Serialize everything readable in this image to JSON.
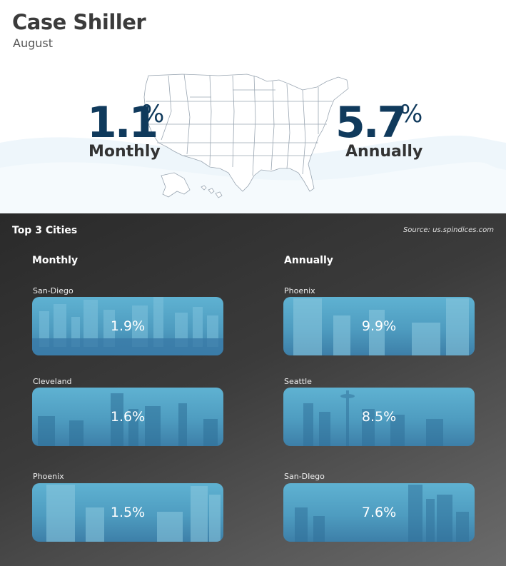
{
  "header": {
    "title": "Case Shiller",
    "subtitle": "August"
  },
  "summary": {
    "monthly": {
      "value": "1.1",
      "unit": "%",
      "label": "Monthly"
    },
    "annually": {
      "value": "5.7",
      "unit": "%",
      "label": "Annually"
    }
  },
  "cities_section": {
    "title": "Top 3 Cities",
    "source": "Source: us.spindices.com",
    "monthly": {
      "heading": "Monthly",
      "items": [
        {
          "city": "San-Diego",
          "value": "1.9%"
        },
        {
          "city": "Cleveland",
          "value": "1.6%"
        },
        {
          "city": "Phoenix",
          "value": "1.5%"
        }
      ]
    },
    "annually": {
      "heading": "Annually",
      "items": [
        {
          "city": "Phoenix",
          "value": "9.9%"
        },
        {
          "city": "Seattle",
          "value": "8.5%"
        },
        {
          "city": "San-DIego",
          "value": "7.6%"
        }
      ]
    }
  },
  "colors": {
    "accent_navy": "#103a5c",
    "card_blue": "#4e9cc0",
    "dark_panel": "#2f2f2f"
  }
}
